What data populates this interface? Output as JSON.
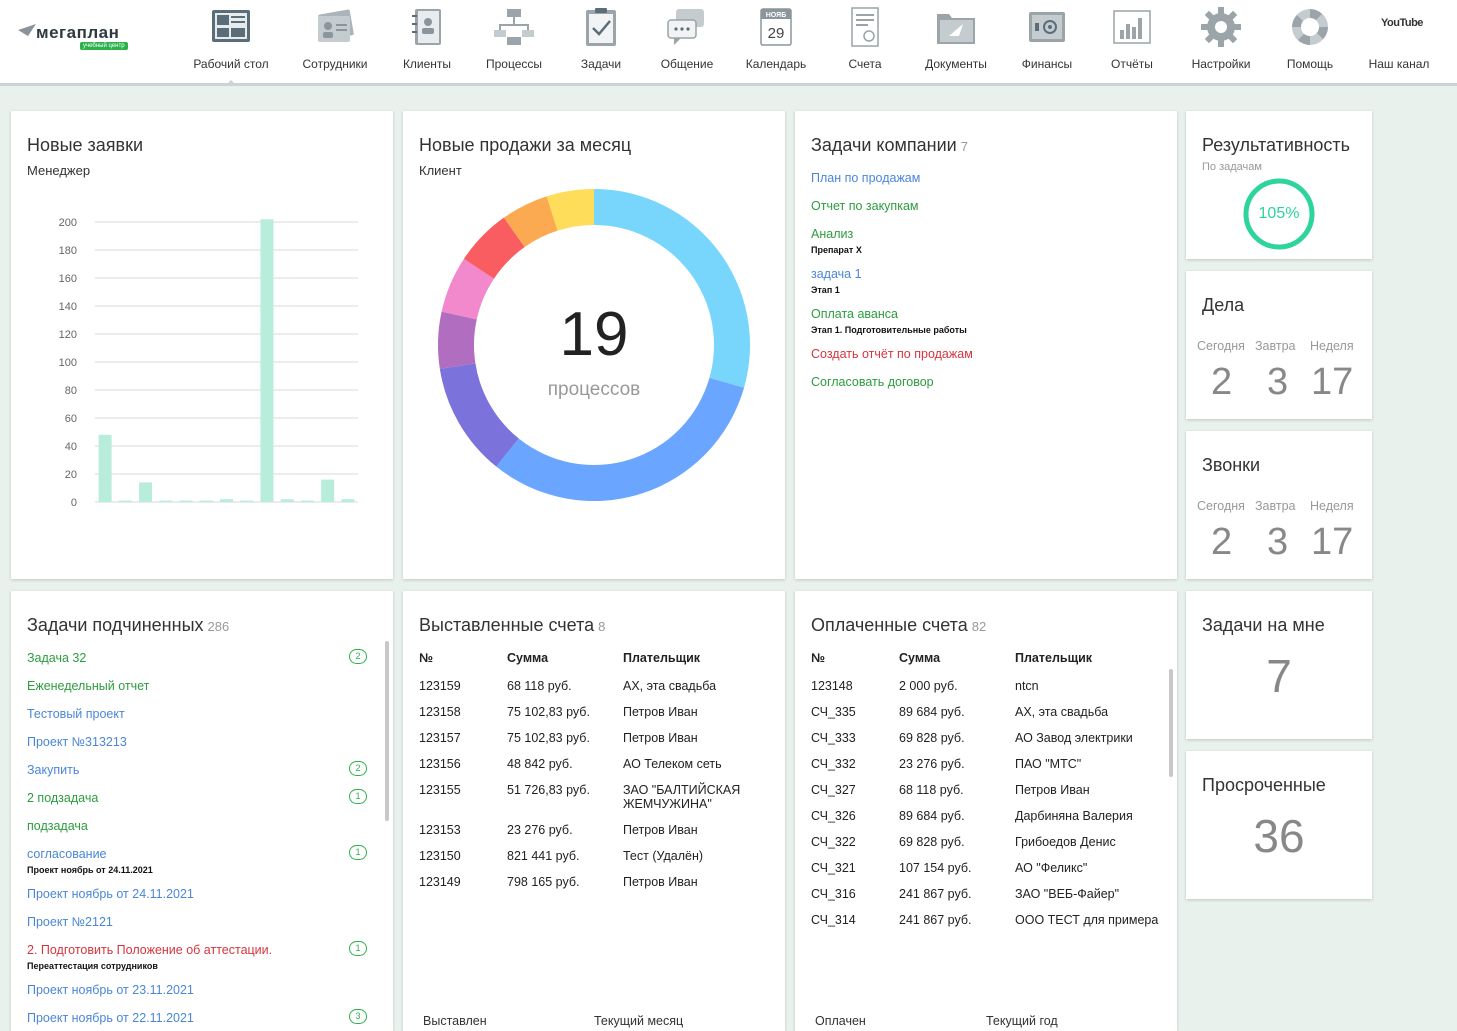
{
  "nav": {
    "logo": "мегаплан",
    "logo_sub": "учебный центр",
    "items": [
      {
        "label": "Рабочий стол",
        "icon": "desktop-icon"
      },
      {
        "label": "Сотрудники",
        "icon": "employees-icon"
      },
      {
        "label": "Клиенты",
        "icon": "clients-icon"
      },
      {
        "label": "Процессы",
        "icon": "processes-icon"
      },
      {
        "label": "Задачи",
        "icon": "tasks-icon"
      },
      {
        "label": "Общение",
        "icon": "chat-icon"
      },
      {
        "label": "Календарь",
        "icon": "calendar-icon"
      },
      {
        "label": "Счета",
        "icon": "invoices-icon"
      },
      {
        "label": "Документы",
        "icon": "documents-icon"
      },
      {
        "label": "Финансы",
        "icon": "finance-icon"
      },
      {
        "label": "Отчёты",
        "icon": "reports-icon"
      },
      {
        "label": "Настройки",
        "icon": "settings-icon"
      },
      {
        "label": "Помощь",
        "icon": "help-icon"
      },
      {
        "label": "Наш канал",
        "icon": "youtube-icon"
      }
    ],
    "calendar_month": "НОЯБ",
    "calendar_day": "29",
    "youtube_text": "YouTube"
  },
  "new_requests": {
    "title": "Новые заявки",
    "subtitle": "Менеджер",
    "chart_data": {
      "type": "bar",
      "values": [
        48,
        1,
        14,
        1,
        1,
        1,
        2,
        1,
        202,
        2,
        1,
        16,
        2
      ],
      "ylim": [
        0,
        200
      ],
      "yticks": [
        "0",
        "20",
        "40",
        "60",
        "80",
        "100",
        "120",
        "140",
        "160",
        "180",
        "200"
      ],
      "grid": true,
      "color": "#b8ecdb"
    }
  },
  "new_sales": {
    "title": "Новые продажи за месяц",
    "subtitle": "Клиент",
    "center_value": "19",
    "center_label": "процессов",
    "chart_data": {
      "type": "pie",
      "values": [
        30,
        32,
        12,
        6,
        6,
        6,
        5,
        5
      ],
      "colors": [
        "#78d6fd",
        "#6aa6ff",
        "#7c72db",
        "#b16dbf",
        "#f189cc",
        "#f95d61",
        "#fcaa51",
        "#fedd5a"
      ]
    }
  },
  "company_tasks": {
    "title": "Задачи компании",
    "count": "7",
    "items": [
      {
        "label": "План по продажам",
        "color": "blue",
        "sub": ""
      },
      {
        "label": "Отчет по закупкам",
        "color": "green",
        "sub": ""
      },
      {
        "label": "Анализ",
        "color": "green",
        "sub": "Препарат X"
      },
      {
        "label": "задача 1",
        "color": "blue",
        "sub": "Этап 1"
      },
      {
        "label": "Оплата аванса",
        "color": "green",
        "sub": "Этап 1. Подготовительные работы"
      },
      {
        "label": "Создать отчёт по продажам",
        "color": "red",
        "sub": ""
      },
      {
        "label": "Согласовать договор",
        "color": "green",
        "sub": ""
      }
    ]
  },
  "efficiency": {
    "title": "Результативность",
    "subtitle": "По задачам",
    "value": "105%",
    "color": "#2dd49b"
  },
  "deals": {
    "title": "Дела",
    "labels": [
      "Сегодня",
      "Завтра",
      "Неделя"
    ],
    "values": [
      "2",
      "3",
      "17"
    ]
  },
  "calls": {
    "title": "Звонки",
    "labels": [
      "Сегодня",
      "Завтра",
      "Неделя"
    ],
    "values": [
      "2",
      "3",
      "17"
    ]
  },
  "my_tasks": {
    "title": "Задачи на мне",
    "value": "7"
  },
  "overdue": {
    "title": "Просроченные",
    "value": "36"
  },
  "sub_tasks": {
    "title": "Задачи подчиненных",
    "count": "286",
    "items": [
      {
        "label": "Задача 32",
        "color": "green",
        "sub": "",
        "bubble": "2"
      },
      {
        "label": "Еженедельный отчет",
        "color": "green",
        "sub": "",
        "bubble": ""
      },
      {
        "label": "Тестовый проект",
        "color": "blue",
        "sub": "",
        "bubble": ""
      },
      {
        "label": "Проект №313213",
        "color": "blue",
        "sub": "",
        "bubble": ""
      },
      {
        "label": "Закупить",
        "color": "blue",
        "sub": "",
        "bubble": "2"
      },
      {
        "label": "2 подзадача",
        "color": "green",
        "sub": "",
        "bubble": "1"
      },
      {
        "label": "подзадача",
        "color": "green",
        "sub": "",
        "bubble": ""
      },
      {
        "label": "согласование",
        "color": "blue",
        "sub": "Проект ноябрь от 24.11.2021",
        "bubble": "1"
      },
      {
        "label": "Проект ноябрь от 24.11.2021",
        "color": "blue",
        "sub": "",
        "bubble": ""
      },
      {
        "label": "Проект №2121",
        "color": "blue",
        "sub": "",
        "bubble": ""
      },
      {
        "label": "2. Подготовить Положение об аттестации.",
        "color": "red",
        "sub": "Переаттестация сотрудников",
        "bubble": "1"
      },
      {
        "label": "Проект ноябрь от 23.11.2021",
        "color": "blue",
        "sub": "",
        "bubble": ""
      },
      {
        "label": "Проект ноябрь от 22.11.2021",
        "color": "blue",
        "sub": "",
        "bubble": "3"
      }
    ]
  },
  "issued_invoices": {
    "title": "Выставленные счета",
    "count": "8",
    "headers": [
      "№",
      "Сумма",
      "Плательщик"
    ],
    "rows": [
      {
        "num": "123159",
        "sum": "68 118  руб.",
        "payer": "АХ, эта свадьба"
      },
      {
        "num": "123158",
        "sum": "75 102,83  руб.",
        "payer": "Петров Иван"
      },
      {
        "num": "123157",
        "sum": "75 102,83  руб.",
        "payer": "Петров Иван"
      },
      {
        "num": "123156",
        "sum": "48 842  руб.",
        "payer": "АО Телеком сеть"
      },
      {
        "num": "123155",
        "sum": "51 726,83  руб.",
        "payer": "ЗАО \"БАЛТИЙСКАЯ ЖЕМЧУЖИНА\""
      },
      {
        "num": "123153",
        "sum": "23 276  руб.",
        "payer": "Петров Иван"
      },
      {
        "num": "123150",
        "sum": "821 441  руб.",
        "payer": "Тест (Удалён)"
      },
      {
        "num": "123149",
        "sum": "798 165  руб.",
        "payer": "Петров Иван"
      }
    ],
    "footer_left": "Выставлен",
    "footer_right": "Текущий месяц"
  },
  "paid_invoices": {
    "title": "Оплаченные счета",
    "count": "82",
    "headers": [
      "№",
      "Сумма",
      "Плательщик"
    ],
    "rows": [
      {
        "num": "123148",
        "sum": "2 000  руб.",
        "payer": "ntcn"
      },
      {
        "num": "СЧ_335",
        "sum": "89 684  руб.",
        "payer": "АХ, эта свадьба"
      },
      {
        "num": "СЧ_333",
        "sum": "69 828  руб.",
        "payer": "АО Завод электрики"
      },
      {
        "num": "СЧ_332",
        "sum": "23 276  руб.",
        "payer": "ПАО \"МТС\""
      },
      {
        "num": "СЧ_327",
        "sum": "68 118  руб.",
        "payer": "Петров Иван"
      },
      {
        "num": "СЧ_326",
        "sum": "89 684  руб.",
        "payer": "Дарбиняна Валерия"
      },
      {
        "num": "СЧ_322",
        "sum": "69 828  руб.",
        "payer": "Грибоедов Денис"
      },
      {
        "num": "СЧ_321",
        "sum": "107 154  руб.",
        "payer": "АО \"Феликс\""
      },
      {
        "num": "СЧ_316",
        "sum": "241 867  руб.",
        "payer": "ЗАО \"ВЕБ-Файер\""
      },
      {
        "num": "СЧ_314",
        "sum": "241 867  руб.",
        "payer": "ООО ТЕСТ для примера"
      }
    ],
    "footer_left": "Оплачен",
    "footer_right": "Текущий год"
  }
}
